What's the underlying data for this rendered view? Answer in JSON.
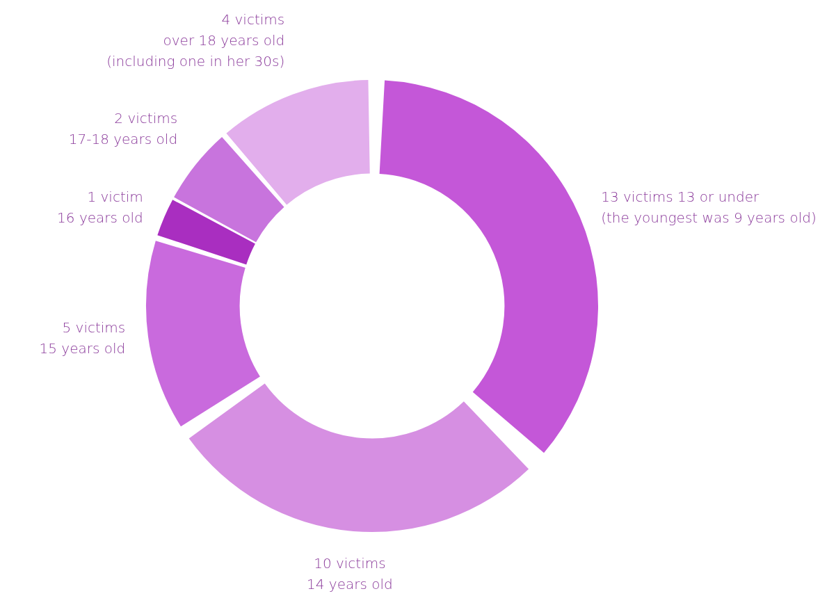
{
  "chart_data": {
    "type": "donut",
    "categories": [
      "13 victims 13 or under\n(the youngest was 9 years old)",
      "10 victims\n14 years old",
      "5 victims\n15 years old",
      "1 victim\n16 years old",
      "2 victims\n17-18 years old",
      "4 victims\nover 18 years old\n(including one in her 30s)"
    ],
    "values": [
      13,
      10,
      5,
      1,
      2,
      4
    ],
    "colors": [
      "#c457d8",
      "#d68fe2",
      "#c96add",
      "#a92ec0",
      "#c874dd",
      "#e2aeec"
    ]
  }
}
